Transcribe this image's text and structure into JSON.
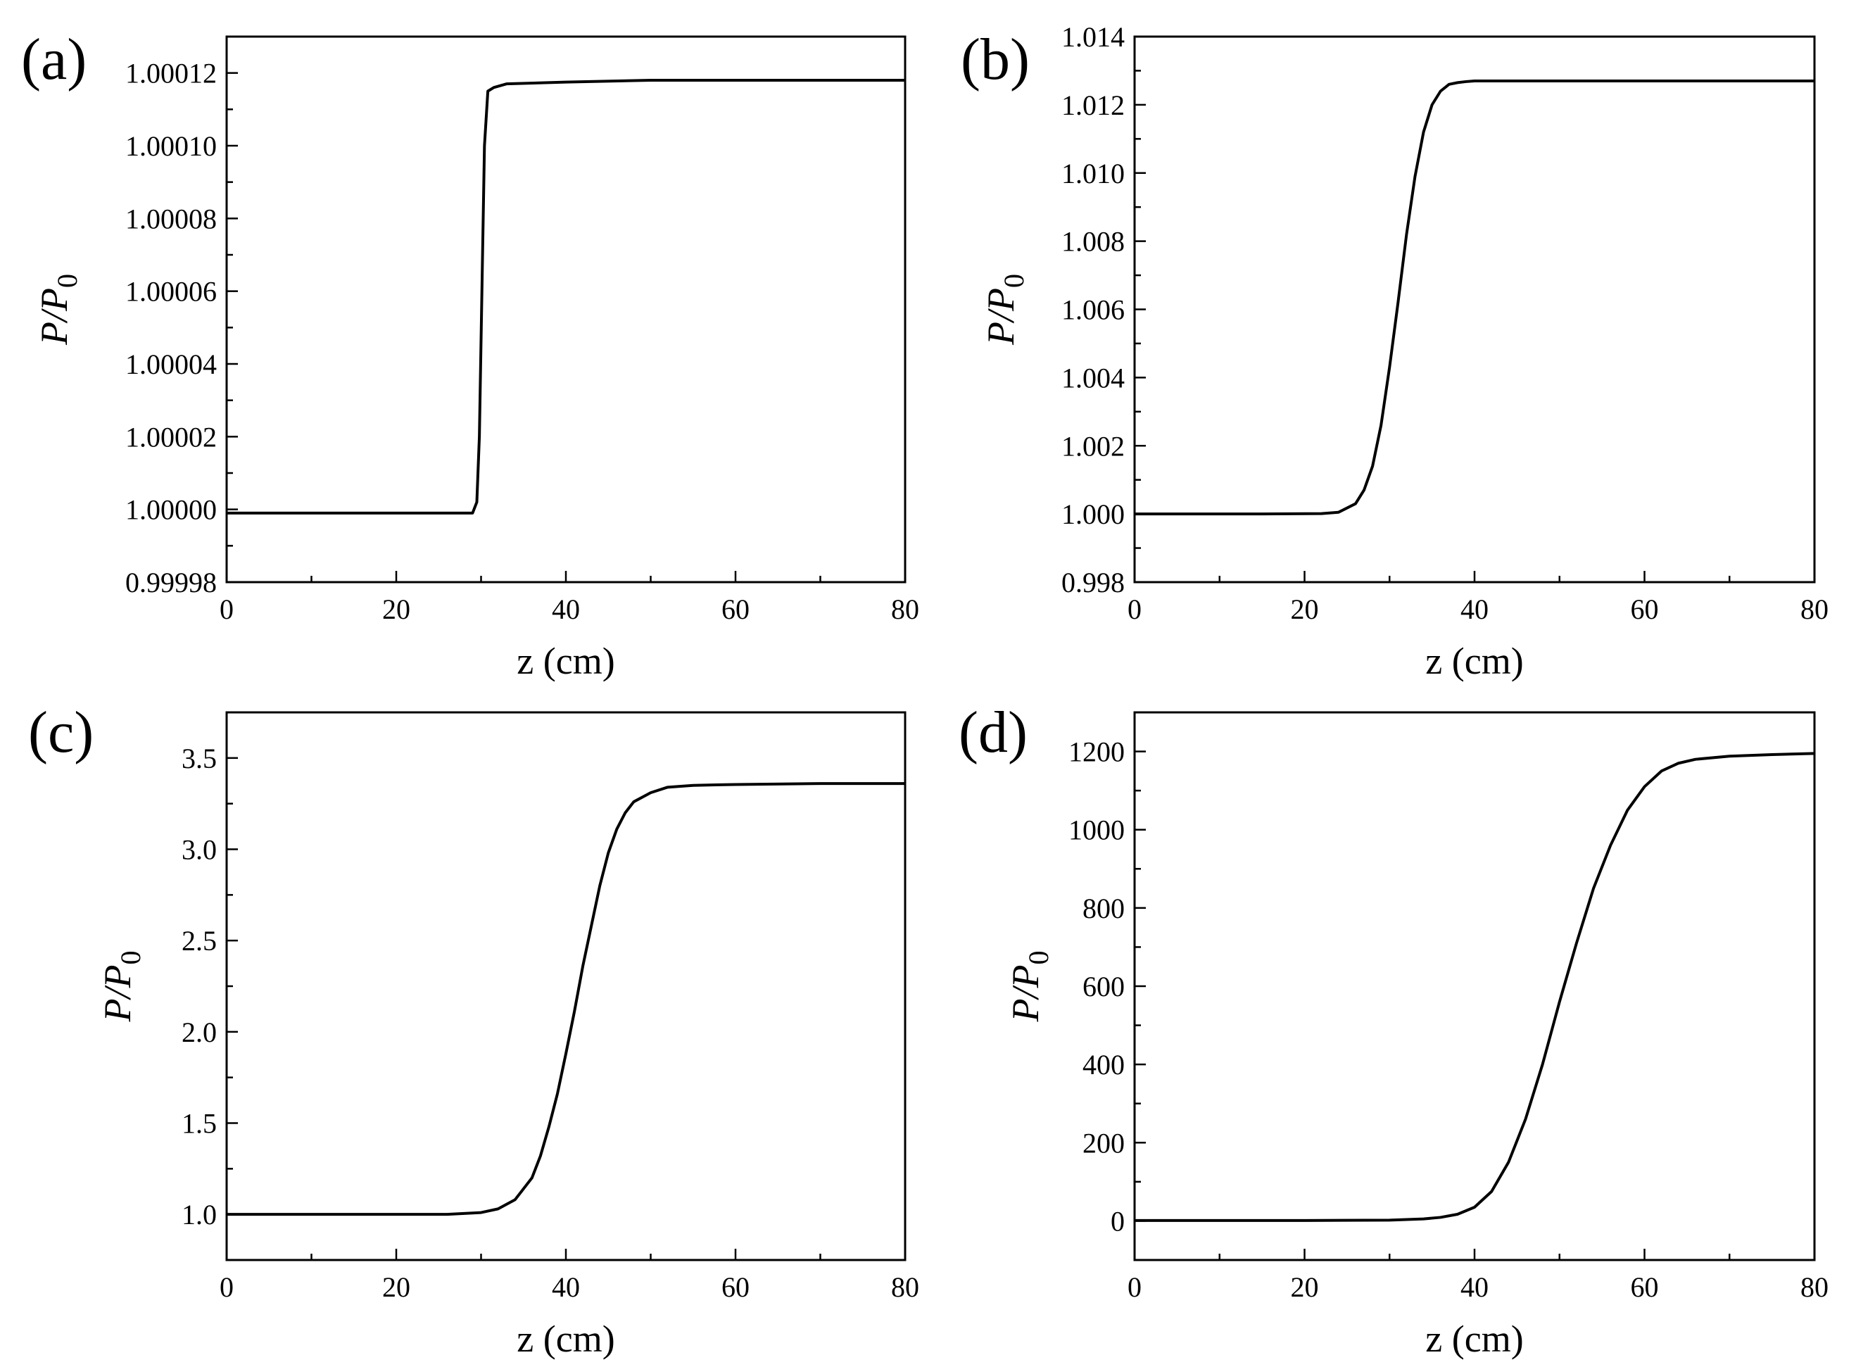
{
  "chart_data": [
    {
      "type": "line",
      "panel_label": "(a)",
      "xlabel": "z (cm)",
      "ylabel": {
        "main": "P/P",
        "sub": "0"
      },
      "xlim": [
        0,
        80
      ],
      "ylim": [
        0.99998,
        1.00013
      ],
      "x_ticks": [
        "0",
        "20",
        "40",
        "60",
        "80"
      ],
      "y_ticks": [
        "0.99998",
        "1.00000",
        "1.00002",
        "1.00004",
        "1.00006",
        "1.00008",
        "1.00010",
        "1.00012"
      ],
      "series": [
        {
          "color": "#000000",
          "x": [
            0,
            10,
            20,
            28,
            29,
            29.5,
            29.8,
            30.1,
            30.4,
            30.8,
            31.5,
            33,
            40,
            50,
            60,
            70,
            80
          ],
          "y": [
            0.999999,
            0.999999,
            0.999999,
            0.999999,
            0.999999,
            1.000002,
            1.00002,
            1.00006,
            1.0001,
            1.000115,
            1.000116,
            1.000117,
            1.0001175,
            1.000118,
            1.000118,
            1.000118,
            1.000118
          ]
        }
      ]
    },
    {
      "type": "line",
      "panel_label": "(b)",
      "xlabel": "z (cm)",
      "ylabel": {
        "main": "P/P",
        "sub": "0"
      },
      "xlim": [
        0,
        80
      ],
      "ylim": [
        0.998,
        1.014
      ],
      "x_ticks": [
        "0",
        "20",
        "40",
        "60",
        "80"
      ],
      "y_ticks": [
        "0.998",
        "1.000",
        "1.002",
        "1.004",
        "1.006",
        "1.008",
        "1.010",
        "1.012",
        "1.014"
      ],
      "series": [
        {
          "color": "#000000",
          "x": [
            0,
            15,
            22,
            24,
            26,
            27,
            28,
            29,
            30,
            31,
            32,
            33,
            34,
            35,
            36,
            37,
            38,
            39,
            40,
            42,
            50,
            60,
            70,
            80
          ],
          "y": [
            1.0,
            1.0,
            1.00001,
            1.00005,
            1.0003,
            1.0007,
            1.0014,
            1.0026,
            1.0043,
            1.0062,
            1.0082,
            1.0099,
            1.0112,
            1.012,
            1.0124,
            1.0126,
            1.01265,
            1.01268,
            1.0127,
            1.0127,
            1.0127,
            1.0127,
            1.0127,
            1.0127
          ]
        }
      ]
    },
    {
      "type": "line",
      "panel_label": "(c)",
      "xlabel": "z (cm)",
      "ylabel": {
        "main": "P/P",
        "sub": "0"
      },
      "xlim": [
        0,
        80
      ],
      "ylim": [
        0.75,
        3.75
      ],
      "x_ticks": [
        "0",
        "20",
        "40",
        "60",
        "80"
      ],
      "y_ticks": [
        "1.0",
        "1.5",
        "2.0",
        "2.5",
        "3.0",
        "3.5"
      ],
      "series": [
        {
          "color": "#000000",
          "x": [
            0,
            20,
            26,
            30,
            32,
            34,
            36,
            37,
            38,
            39,
            40,
            41,
            42,
            43,
            44,
            45,
            46,
            47,
            48,
            50,
            52,
            55,
            60,
            70,
            80
          ],
          "y": [
            1.0,
            1.0,
            1.0,
            1.01,
            1.03,
            1.08,
            1.2,
            1.32,
            1.48,
            1.66,
            1.88,
            2.11,
            2.36,
            2.58,
            2.8,
            2.98,
            3.11,
            3.2,
            3.26,
            3.31,
            3.34,
            3.35,
            3.355,
            3.36,
            3.36
          ]
        }
      ]
    },
    {
      "type": "line",
      "panel_label": "(d)",
      "xlabel": "z (cm)",
      "ylabel": {
        "main": "P/P",
        "sub": "0"
      },
      "xlim": [
        0,
        80
      ],
      "ylim": [
        -100,
        1300
      ],
      "x_ticks": [
        "0",
        "20",
        "40",
        "60",
        "80"
      ],
      "y_ticks": [
        "0",
        "200",
        "400",
        "600",
        "800",
        "1000",
        "1200"
      ],
      "series": [
        {
          "color": "#000000",
          "x": [
            0,
            20,
            30,
            34,
            36,
            38,
            40,
            42,
            44,
            46,
            48,
            50,
            52,
            54,
            56,
            58,
            60,
            62,
            64,
            66,
            70,
            75,
            80
          ],
          "y": [
            1,
            1,
            2,
            5,
            9,
            17,
            35,
            75,
            150,
            260,
            400,
            560,
            710,
            850,
            960,
            1050,
            1110,
            1150,
            1170,
            1180,
            1188,
            1192,
            1195
          ]
        }
      ]
    }
  ]
}
